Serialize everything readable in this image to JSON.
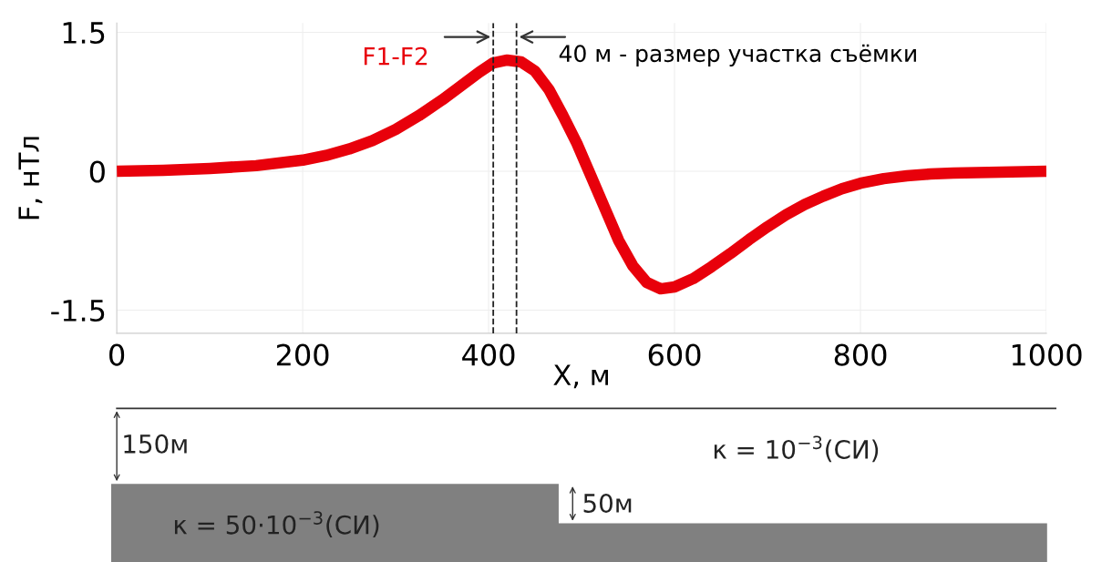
{
  "chart_data": {
    "type": "line",
    "xlabel": "X, м",
    "ylabel": "F, нТл",
    "xlim": [
      0,
      1000
    ],
    "xticks": [
      0,
      200,
      400,
      600,
      800,
      1000
    ],
    "ylim": [
      -1.75,
      1.6
    ],
    "yticks": [
      1.5,
      0,
      -1.5
    ],
    "grid": true,
    "marker": "none",
    "line_style": "solid",
    "x": [
      0,
      50,
      100,
      150,
      200,
      225,
      250,
      275,
      300,
      325,
      350,
      370,
      390,
      405,
      420,
      435,
      450,
      465,
      480,
      495,
      510,
      525,
      540,
      555,
      570,
      585,
      600,
      620,
      640,
      660,
      680,
      700,
      720,
      740,
      760,
      780,
      800,
      825,
      850,
      875,
      900,
      950,
      1000
    ],
    "series": [
      {
        "name": "F1-F2",
        "color": "#e8000b",
        "values": [
          0.0,
          0.01,
          0.03,
          0.06,
          0.12,
          0.17,
          0.24,
          0.33,
          0.45,
          0.6,
          0.77,
          0.92,
          1.07,
          1.17,
          1.2,
          1.18,
          1.08,
          0.88,
          0.6,
          0.3,
          -0.05,
          -0.4,
          -0.75,
          -1.02,
          -1.2,
          -1.27,
          -1.25,
          -1.16,
          -1.03,
          -0.89,
          -0.74,
          -0.6,
          -0.47,
          -0.36,
          -0.27,
          -0.19,
          -0.13,
          -0.08,
          -0.05,
          -0.03,
          -0.02,
          -0.01,
          0.0
        ]
      }
    ],
    "ref_lines": [
      {
        "axis": "x",
        "value": 405,
        "color": "#222222",
        "line_style": "dashed"
      },
      {
        "axis": "x",
        "value": 430,
        "color": "#222222",
        "line_style": "dashed"
      }
    ],
    "annotations": [
      "40 м - размер участка съёмки",
      "150м",
      "κ = 10$^{−3}$(СИ)",
      "50м",
      "κ = 50·10$^{−3}$(СИ)"
    ]
  }
}
